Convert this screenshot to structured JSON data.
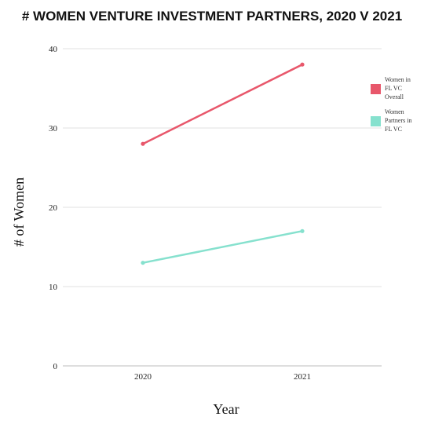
{
  "chart_data": {
    "type": "line",
    "title": "# WOMEN VENTURE INVESTMENT PARTNERS, 2020 V 2021",
    "xlabel": "Year",
    "ylabel": "# of Women",
    "categories": [
      "2020",
      "2021"
    ],
    "ylim": [
      0,
      40
    ],
    "yticks": [
      0,
      10,
      20,
      30,
      40
    ],
    "grid": true,
    "legend_position": "right",
    "series": [
      {
        "name": "Women in FL VC Overall",
        "legend_lines": [
          "Women in",
          "FL VC",
          "Overall"
        ],
        "values": [
          28,
          38
        ],
        "color": "#e8576b"
      },
      {
        "name": "Women Partners in FL VC",
        "legend_lines": [
          "Women",
          "Partners in",
          "FL VC"
        ],
        "values": [
          13,
          17
        ],
        "color": "#86e1ce"
      }
    ]
  }
}
